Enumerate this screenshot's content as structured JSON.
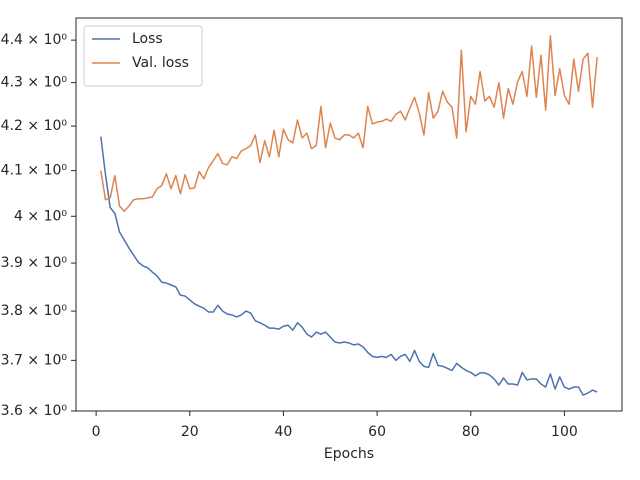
{
  "chart_data": {
    "type": "line",
    "xlabel": "Epochs",
    "x": [
      1,
      2,
      3,
      4,
      5,
      6,
      7,
      8,
      9,
      10,
      11,
      12,
      13,
      14,
      15,
      16,
      17,
      18,
      19,
      20,
      21,
      22,
      23,
      24,
      25,
      26,
      27,
      28,
      29,
      30,
      31,
      32,
      33,
      34,
      35,
      36,
      37,
      38,
      39,
      40,
      41,
      42,
      43,
      44,
      45,
      46,
      47,
      48,
      49,
      50,
      51,
      52,
      53,
      54,
      55,
      56,
      57,
      58,
      59,
      60,
      61,
      62,
      63,
      64,
      65,
      66,
      67,
      68,
      69,
      70,
      71,
      72,
      73,
      74,
      75,
      76,
      77,
      78,
      79,
      80,
      81,
      82,
      83,
      84,
      85,
      86,
      87,
      88,
      89,
      90,
      91,
      92,
      93,
      94,
      95,
      96,
      97,
      98,
      99,
      100,
      101,
      102,
      103,
      104,
      105,
      106,
      107
    ],
    "series": [
      {
        "name": "Loss",
        "color": "#4c72b0",
        "values": [
          4.176,
          4.091,
          4.019,
          4.006,
          3.966,
          3.949,
          3.932,
          3.917,
          3.902,
          3.894,
          3.89,
          3.881,
          3.873,
          3.86,
          3.858,
          3.854,
          3.85,
          3.833,
          3.831,
          3.823,
          3.815,
          3.81,
          3.806,
          3.798,
          3.798,
          3.812,
          3.8,
          3.794,
          3.792,
          3.788,
          3.792,
          3.8,
          3.796,
          3.78,
          3.776,
          3.771,
          3.765,
          3.765,
          3.763,
          3.769,
          3.771,
          3.761,
          3.776,
          3.767,
          3.753,
          3.747,
          3.757,
          3.753,
          3.757,
          3.747,
          3.737,
          3.735,
          3.737,
          3.735,
          3.731,
          3.733,
          3.727,
          3.716,
          3.708,
          3.706,
          3.708,
          3.706,
          3.712,
          3.7,
          3.708,
          3.712,
          3.698,
          3.72,
          3.698,
          3.688,
          3.686,
          3.714,
          3.69,
          3.688,
          3.684,
          3.68,
          3.694,
          3.686,
          3.68,
          3.676,
          3.669,
          3.675,
          3.675,
          3.671,
          3.663,
          3.651,
          3.665,
          3.653,
          3.653,
          3.651,
          3.676,
          3.661,
          3.663,
          3.663,
          3.653,
          3.647,
          3.673,
          3.643,
          3.667,
          3.647,
          3.643,
          3.647,
          3.647,
          3.631,
          3.635,
          3.641,
          3.637
        ]
      },
      {
        "name": "Val. loss",
        "color": "#dd8452",
        "values": [
          4.1,
          4.036,
          4.04,
          4.089,
          4.022,
          4.011,
          4.022,
          4.036,
          4.038,
          4.038,
          4.04,
          4.042,
          4.06,
          4.067,
          4.093,
          4.06,
          4.089,
          4.049,
          4.091,
          4.06,
          4.062,
          4.098,
          4.082,
          4.107,
          4.122,
          4.138,
          4.116,
          4.113,
          4.131,
          4.127,
          4.144,
          4.149,
          4.156,
          4.18,
          4.118,
          4.167,
          4.131,
          4.191,
          4.131,
          4.193,
          4.169,
          4.162,
          4.214,
          4.173,
          4.184,
          4.149,
          4.156,
          4.245,
          4.151,
          4.207,
          4.173,
          4.169,
          4.18,
          4.18,
          4.173,
          4.184,
          4.151,
          4.245,
          4.205,
          4.209,
          4.211,
          4.216,
          4.211,
          4.227,
          4.234,
          4.214,
          4.241,
          4.266,
          4.23,
          4.18,
          4.277,
          4.218,
          4.234,
          4.28,
          4.255,
          4.243,
          4.173,
          4.376,
          4.187,
          4.268,
          4.25,
          4.326,
          4.257,
          4.268,
          4.243,
          4.3,
          4.218,
          4.286,
          4.25,
          4.302,
          4.326,
          4.268,
          4.386,
          4.266,
          4.364,
          4.236,
          4.41,
          4.27,
          4.333,
          4.27,
          4.25,
          4.355,
          4.28,
          4.355,
          4.369,
          4.243,
          4.36
        ]
      }
    ],
    "xlim": [
      -4.3,
      112.3
    ],
    "xticks": [
      0,
      20,
      40,
      60,
      80,
      100
    ],
    "ylim": [
      3.6,
      4.453
    ],
    "yscale": "log",
    "yticks": [
      {
        "value": 3.6,
        "label": "3.6 × 10⁰"
      },
      {
        "value": 3.7,
        "label": "3.7 × 10⁰"
      },
      {
        "value": 3.8,
        "label": "3.8 × 10⁰"
      },
      {
        "value": 3.9,
        "label": "3.9 × 10⁰"
      },
      {
        "value": 4,
        "label": "4 × 10⁰"
      },
      {
        "value": 4.1,
        "label": "4.1 × 10⁰"
      },
      {
        "value": 4.2,
        "label": "4.2 × 10⁰"
      },
      {
        "value": 4.3,
        "label": "4.3 × 10⁰"
      },
      {
        "value": 4.4,
        "label": "4.4 × 10⁰"
      }
    ],
    "legend": "upper left"
  }
}
